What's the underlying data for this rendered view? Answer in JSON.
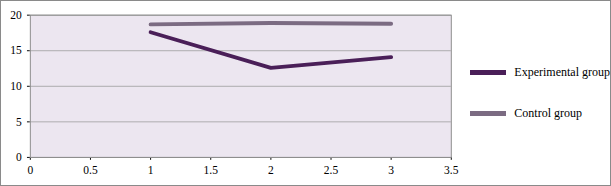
{
  "chart_data": {
    "type": "line",
    "x": [
      1,
      2,
      3
    ],
    "series": [
      {
        "name": "Experimental group",
        "color": "#4a1f58",
        "values": [
          17.6,
          12.6,
          14.1
        ]
      },
      {
        "name": "Control group",
        "color": "#7b6b82",
        "values": [
          18.7,
          18.9,
          18.8
        ]
      }
    ],
    "xlim": [
      0,
      3.5
    ],
    "xticks": [
      0,
      0.5,
      1,
      1.5,
      2,
      2.5,
      3,
      3.5
    ],
    "ylim": [
      0,
      20
    ],
    "yticks": [
      0,
      5,
      10,
      15,
      20
    ],
    "grid": true,
    "legend": "right"
  }
}
